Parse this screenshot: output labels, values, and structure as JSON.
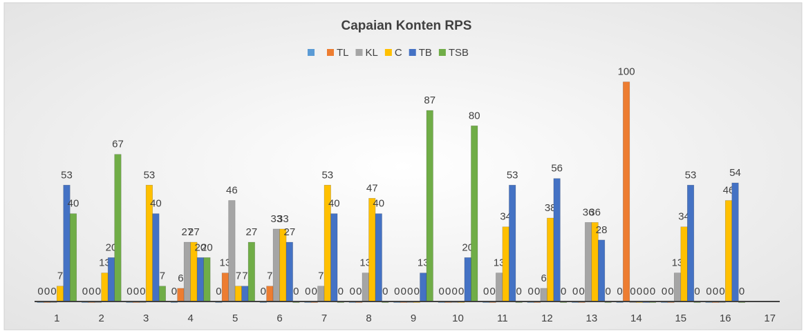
{
  "chart_data": {
    "type": "bar",
    "title": "Capaian  Konten RPS",
    "categories": [
      "1",
      "2",
      "3",
      "4",
      "5",
      "6",
      "7",
      "8",
      "9",
      "10",
      "11",
      "12",
      "13",
      "14",
      "15",
      "16",
      "17"
    ],
    "ylim": [
      0,
      120
    ],
    "series": [
      {
        "color": "#5b9bd5",
        "values": [
          0,
          0,
          0,
          0,
          0,
          0,
          0,
          0,
          0,
          0,
          0,
          0,
          0,
          0,
          0,
          0,
          null
        ]
      },
      {
        "name": "TL",
        "color": "#ed7d31",
        "values": [
          0,
          0,
          0,
          6,
          13,
          7,
          0,
          0,
          0,
          0,
          0,
          0,
          0,
          100,
          0,
          0,
          null
        ]
      },
      {
        "name": "KL",
        "color": "#a5a5a5",
        "values": [
          0,
          0,
          0,
          27,
          46,
          33,
          7,
          13,
          0,
          0,
          13,
          6,
          36,
          0,
          13,
          0,
          null
        ]
      },
      {
        "name": "C",
        "color": "#ffc000",
        "values": [
          7,
          13,
          53,
          27,
          7,
          33,
          53,
          47,
          0,
          0,
          34,
          38,
          36,
          0,
          34,
          46,
          null
        ]
      },
      {
        "name": "TB",
        "color": "#4472c4",
        "values": [
          53,
          20,
          40,
          20,
          7,
          27,
          40,
          40,
          13,
          20,
          53,
          56,
          28,
          0,
          53,
          54,
          null
        ]
      },
      {
        "name": "TSB",
        "color": "#70ad47",
        "values": [
          40,
          67,
          7,
          20,
          27,
          0,
          0,
          0,
          87,
          80,
          0,
          0,
          0,
          0,
          0,
          0,
          null
        ]
      }
    ]
  }
}
